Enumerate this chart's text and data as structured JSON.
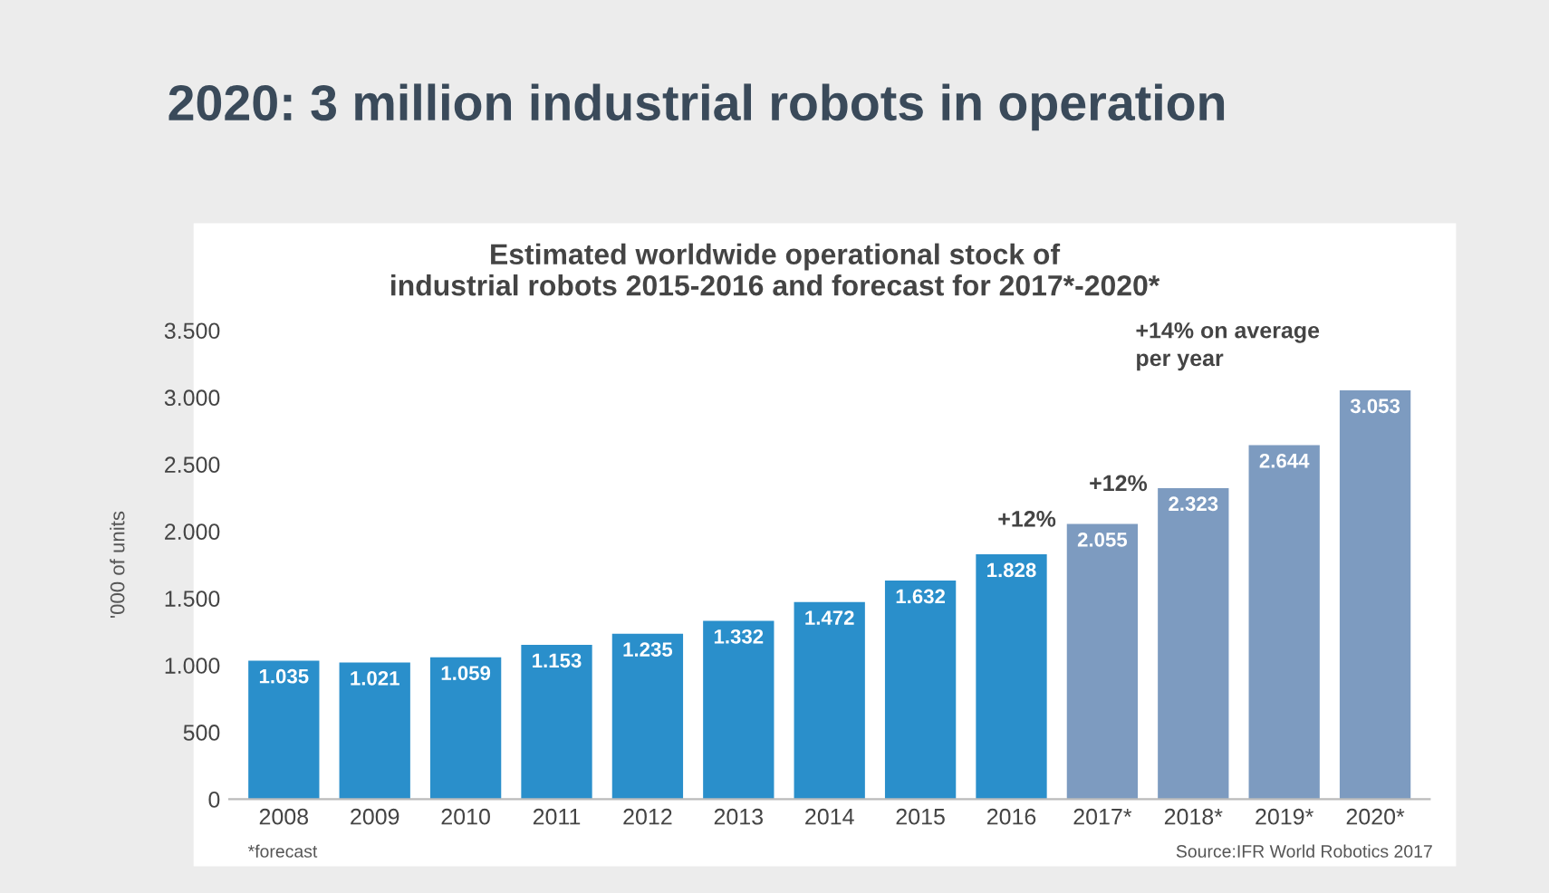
{
  "chart_data": {
    "type": "bar",
    "title": "2020: 3 million industrial robots in operation",
    "subtitle": "Estimated worldwide operational stock of\nindustrial robots 2015-2016 and forecast for 2017*-2020*",
    "ylabel": "'000 of units",
    "categories": [
      "2008",
      "2009",
      "2010",
      "2011",
      "2012",
      "2013",
      "2014",
      "2015",
      "2016",
      "2017*",
      "2018*",
      "2019*",
      "2020*"
    ],
    "values": [
      1035,
      1021,
      1059,
      1153,
      1235,
      1332,
      1472,
      1632,
      1828,
      2055,
      2323,
      2644,
      3053
    ],
    "value_labels": [
      "1.035",
      "1.021",
      "1.059",
      "1.153",
      "1.235",
      "1.332",
      "1.472",
      "1.632",
      "1.828",
      "2.055",
      "2.323",
      "2.644",
      "3.053"
    ],
    "colors": [
      "#2a8fcb",
      "#2a8fcb",
      "#2a8fcb",
      "#2a8fcb",
      "#2a8fcb",
      "#2a8fcb",
      "#2a8fcb",
      "#2a8fcb",
      "#2a8fcb",
      "#7d9bc0",
      "#7d9bc0",
      "#7d9bc0",
      "#7d9bc0"
    ],
    "ylim": [
      0,
      3500
    ],
    "yticks": [
      0,
      {
        "value": 500,
        "label": "500"
      },
      {
        "value": 1000,
        "label": "1.000"
      },
      {
        "value": 1500,
        "label": "1.500"
      },
      {
        "value": 2000,
        "label": "2.000"
      },
      {
        "value": 2500,
        "label": "2.500"
      },
      {
        "value": 3000,
        "label": "3.000"
      },
      {
        "value": 3500,
        "label": "3.500"
      }
    ],
    "grid": false,
    "annotations": [
      "+12%",
      "+12%",
      "+14% on average\nper year",
      "*forecast",
      "Source:IFR World Robotics 2017"
    ]
  }
}
